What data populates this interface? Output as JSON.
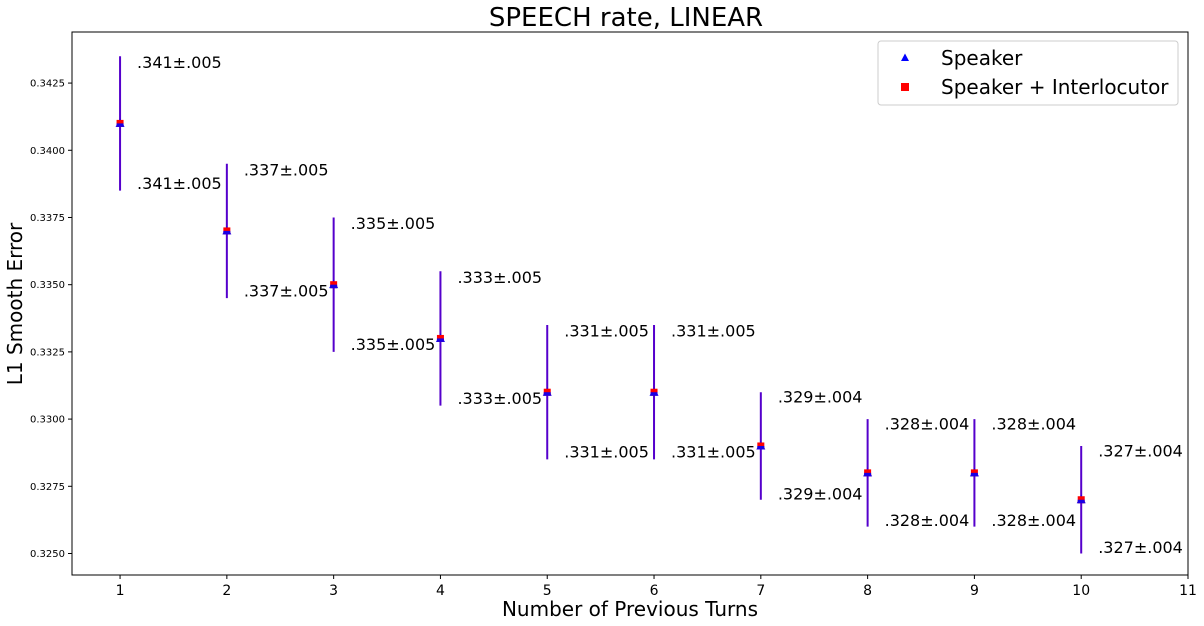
{
  "chart_data": {
    "type": "scatter",
    "title": "SPEECH rate, LINEAR",
    "xlabel": "Number of Previous Turns",
    "ylabel": "L1 Smooth Error",
    "xlim": [
      0.55,
      11
    ],
    "ylim": [
      0.3242,
      0.3444
    ],
    "xticks": [
      1,
      2,
      3,
      4,
      5,
      6,
      7,
      8,
      9,
      10,
      11
    ],
    "yticks": [
      0.325,
      0.3275,
      0.33,
      0.3325,
      0.335,
      0.3375,
      0.34,
      0.3425
    ],
    "ytick_labels": [
      "0.3250",
      "0.3275",
      "0.3300",
      "0.3325",
      "0.3350",
      "0.3375",
      "0.3400",
      "0.3425"
    ],
    "legend_position": "top-right",
    "grid": false,
    "series": [
      {
        "name": "Speaker",
        "marker": "triangle",
        "color": "#0000ff",
        "x": [
          1,
          2,
          3,
          4,
          5,
          6,
          7,
          8,
          9,
          10
        ],
        "y": [
          0.341,
          0.337,
          0.335,
          0.333,
          0.331,
          0.331,
          0.329,
          0.328,
          0.328,
          0.327
        ],
        "err": [
          0.0025,
          0.0025,
          0.0025,
          0.0025,
          0.0025,
          0.0025,
          0.002,
          0.002,
          0.002,
          0.002
        ],
        "labels": [
          ".341±.005",
          ".337±.005",
          ".335±.005",
          ".333±.005",
          ".331±.005",
          ".331±.005",
          ".329±.004",
          ".328±.004",
          ".328±.004",
          ".327±.004"
        ]
      },
      {
        "name": "Speaker + Interlocutor",
        "marker": "square",
        "color": "#ff0000",
        "x": [
          1,
          2,
          3,
          4,
          5,
          6,
          7,
          8,
          9,
          10
        ],
        "y": [
          0.341,
          0.337,
          0.335,
          0.333,
          0.331,
          0.331,
          0.329,
          0.328,
          0.328,
          0.327
        ],
        "err": [
          0.0025,
          0.0025,
          0.0025,
          0.0025,
          0.0025,
          0.0025,
          0.002,
          0.002,
          0.002,
          0.002
        ],
        "labels": [
          ".341±.005",
          ".337±.005",
          ".335±.005",
          ".333±.005",
          ".331±.005",
          ".331±.005",
          ".329±.004",
          ".328±.004",
          ".328±.004",
          ".327±.004"
        ]
      }
    ],
    "errorbar_color": "#5500cc"
  }
}
